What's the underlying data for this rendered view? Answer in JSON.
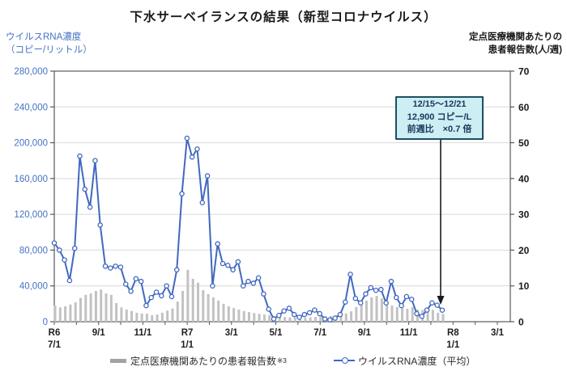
{
  "title": "下水サーベイランスの結果（新型コロナウイルス）",
  "left_axis": {
    "label_line1": "ウイルスRNA濃度",
    "label_line2": "（コピー/リットル）",
    "color": "#4472c4",
    "ticks": [
      "280,000",
      "240,000",
      "200,000",
      "160,000",
      "120,000",
      "80,000",
      "40,000",
      "0"
    ]
  },
  "right_axis": {
    "label_line1": "定点医療機関あたりの",
    "label_line2": "患者報告数(人/週)",
    "color": "#1a1a1a",
    "ticks": [
      "70",
      "60",
      "50",
      "40",
      "30",
      "20",
      "10",
      "0"
    ]
  },
  "annotation": {
    "line1": "12/15～12/21",
    "line2": "12,900 コピー/L",
    "line3": "前週比　×0.7 倍",
    "fill": "#cdeef2",
    "border": "#1c4f63"
  },
  "legend": {
    "bars_label": "定点医療機関あたりの患者報告数",
    "bars_footnote": "※3",
    "line_label": "ウイルスRNA濃度（平均）"
  },
  "chart_data": {
    "type": "combo",
    "title": "下水サーベイランスの結果（新型コロナウイルス）",
    "x_start_week": "2024-06-30",
    "x_interval": "weekly",
    "left_ylim": [
      0,
      280000
    ],
    "right_ylim": [
      0,
      70
    ],
    "grid": "horizontal",
    "legend_position": "bottom",
    "colors": {
      "grid": "#d9d9d9",
      "axis": "#595959",
      "left_axis": "#4472c4",
      "arrow": "#1a1a1a"
    },
    "x_ticks": [
      {
        "m": 0,
        "l1": "R6",
        "l2": "7/1"
      },
      {
        "m": 2,
        "l1": "9/1"
      },
      {
        "m": 4,
        "l1": "11/1"
      },
      {
        "m": 6,
        "l1": "R7",
        "l2": "1/1"
      },
      {
        "m": 8,
        "l1": "3/1"
      },
      {
        "m": 10,
        "l1": "5/1"
      },
      {
        "m": 12,
        "l1": "7/1"
      },
      {
        "m": 14,
        "l1": "9/1"
      },
      {
        "m": 16,
        "l1": "11/1"
      },
      {
        "m": 18,
        "l1": "R8",
        "l2": "1/1"
      },
      {
        "m": 20,
        "l1": "3/1"
      }
    ],
    "months_span": 20,
    "series": [
      {
        "name": "定点医療機関あたりの患者報告数",
        "type": "bar",
        "axis": "right",
        "color": "#c2c2c2",
        "values": [
          4.5,
          4.0,
          4.3,
          4.8,
          5.4,
          6.6,
          7.5,
          7.9,
          8.6,
          9.0,
          7.9,
          7.5,
          5.2,
          4.0,
          3.4,
          3.0,
          2.5,
          2.3,
          2.2,
          1.8,
          2.0,
          2.5,
          3.1,
          3.7,
          5.6,
          8.6,
          14.5,
          12.0,
          10.9,
          8.8,
          7.7,
          6.8,
          5.9,
          5.0,
          4.3,
          3.8,
          3.4,
          3.0,
          2.7,
          2.4,
          2.2,
          2.0,
          1.8,
          1.6,
          1.4,
          1.3,
          1.2,
          1.2,
          1.1,
          1.1,
          1.2,
          1.3,
          1.4,
          1.5,
          1.6,
          1.8,
          2.0,
          2.3,
          2.9,
          4.1,
          4.8,
          5.9,
          6.8,
          7.2,
          6.5,
          5.4,
          4.5,
          4.1,
          3.8,
          3.6,
          4.1,
          3.4,
          3.3,
          2.9,
          3.3,
          2.5,
          2.2
        ]
      },
      {
        "name": "ウイルスRNA濃度（平均）",
        "type": "line",
        "axis": "left",
        "color": "#4068bf",
        "values": [
          88000,
          80000,
          69000,
          46000,
          82000,
          185000,
          148000,
          128000,
          180000,
          108000,
          62000,
          60000,
          62000,
          61000,
          42000,
          34000,
          48000,
          45000,
          18000,
          27000,
          33000,
          29000,
          40000,
          28000,
          58000,
          143000,
          205000,
          184000,
          193000,
          133000,
          163000,
          40000,
          87000,
          65000,
          63000,
          58000,
          67000,
          40000,
          45000,
          43000,
          49000,
          31000,
          14000,
          3000,
          7000,
          12000,
          15000,
          8000,
          5000,
          8000,
          10000,
          13000,
          9000,
          3000,
          2000,
          4000,
          8000,
          22000,
          53000,
          26000,
          21000,
          31000,
          38000,
          35000,
          36000,
          21000,
          45000,
          27000,
          18000,
          28000,
          25000,
          9000,
          6000,
          13000,
          21000,
          18400,
          12900
        ]
      }
    ],
    "annotation": {
      "text": [
        "12/15～12/21",
        "12,900 コピー/L",
        "前週比　×0.7 倍"
      ],
      "points_to_last_value": 12900
    }
  }
}
